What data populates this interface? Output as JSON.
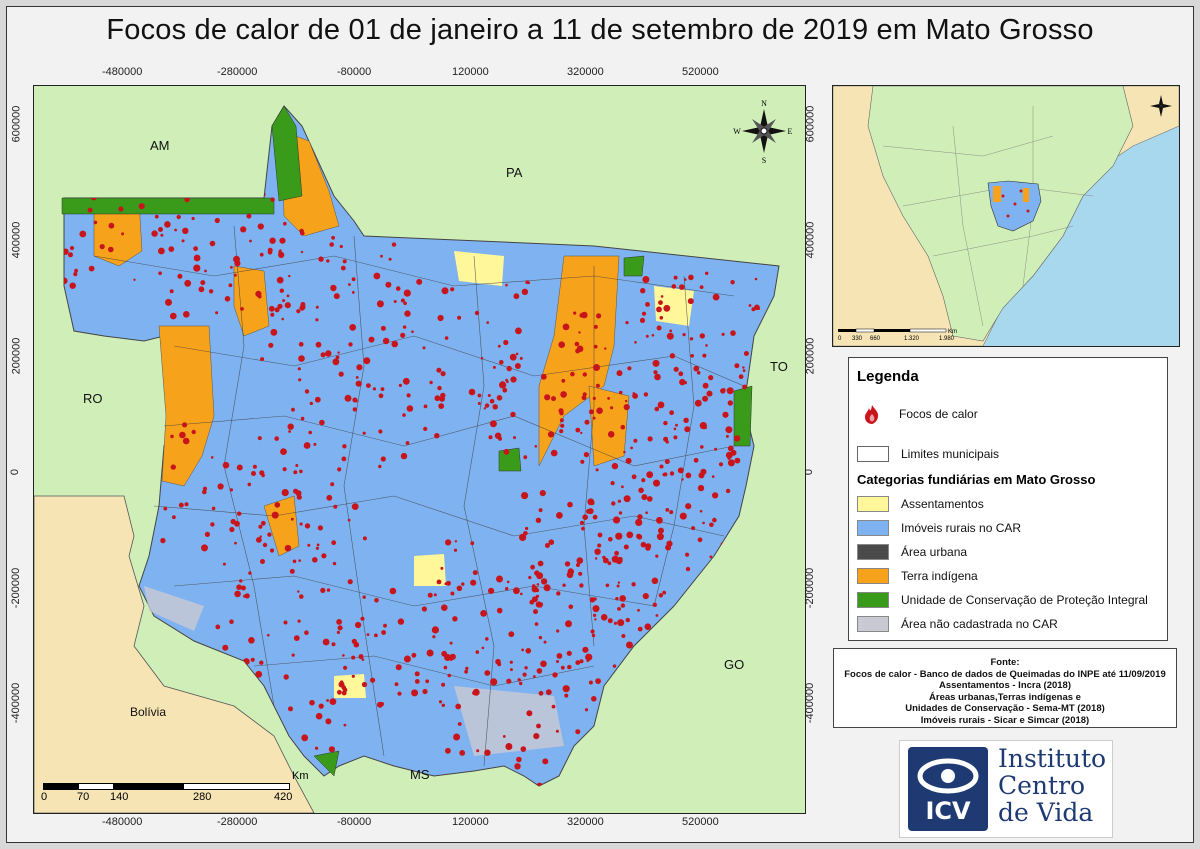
{
  "title": "Focos de calor de 01 de janeiro a 11 de setembro de 2019 em Mato Grosso",
  "coords": {
    "top_x": [
      "-480000",
      "-280000",
      "-80000",
      "120000",
      "320000",
      "520000"
    ],
    "bottom_x": [
      "-480000",
      "-280000",
      "-80000",
      "120000",
      "320000",
      "520000"
    ],
    "left_y": [
      "600000",
      "400000",
      "200000",
      "0",
      "-200000",
      "-400000"
    ],
    "right_y": [
      "600000",
      "400000",
      "200000",
      "0",
      "-200000",
      "-400000"
    ],
    "decimal_suffix": ".000000"
  },
  "regions": {
    "am": "AM",
    "pa": "PA",
    "ro": "RO",
    "to": "TO",
    "go": "GO",
    "ms": "MS",
    "bolivia": "Bolívia"
  },
  "compass": {
    "n": "N",
    "s": "S",
    "e": "E",
    "w": "W"
  },
  "scalebar": {
    "unit": "Km",
    "ticks": [
      "0",
      "70",
      "140",
      "280",
      "420"
    ]
  },
  "inset": {
    "scale_unit": "Km",
    "scale_ticks": [
      "0",
      "330",
      "660",
      "1.320",
      "1.980"
    ]
  },
  "legend": {
    "title": "Legenda",
    "hotspots": "Focos de calor",
    "municipal_limits": "Limites municipais",
    "categories_title": "Categorias fundiárias em Mato Grosso",
    "categories": [
      {
        "label": "Assentamentos",
        "color": "#fff79a"
      },
      {
        "label": "Imóveis rurais no CAR",
        "color": "#7fb2f0"
      },
      {
        "label": "Área urbana",
        "color": "#4a4a4a"
      },
      {
        "label": "Terra indígena",
        "color": "#f7a21b"
      },
      {
        "label": "Unidade de Conservação de Proteção Integral",
        "color": "#3a9a1a"
      },
      {
        "label": "Área não cadastrada no CAR",
        "color": "#c9c9d4"
      }
    ]
  },
  "source": {
    "header": "Fonte:",
    "lines": [
      "Focos de calor - Banco de dados de Queimadas do INPE até 11/09/2019",
      "Assentamentos - Incra (2018)",
      "Áreas urbanas,Terras indígenas e",
      "Unidades de Conservação - Sema-MT (2018)",
      "Imóveis rurais - Sicar e Simcar (2018)"
    ]
  },
  "logo": {
    "mark": "ICV",
    "line1": "Instituto",
    "line2": "Centro",
    "line3": "de Vida"
  },
  "colors": {
    "land": "#cfeeb8",
    "bolivia": "#f6e4b4",
    "state": "#7fb2f0",
    "indigenous": "#f7a21b",
    "conservation": "#3a9a1a",
    "hotspot": "#c8141b"
  }
}
